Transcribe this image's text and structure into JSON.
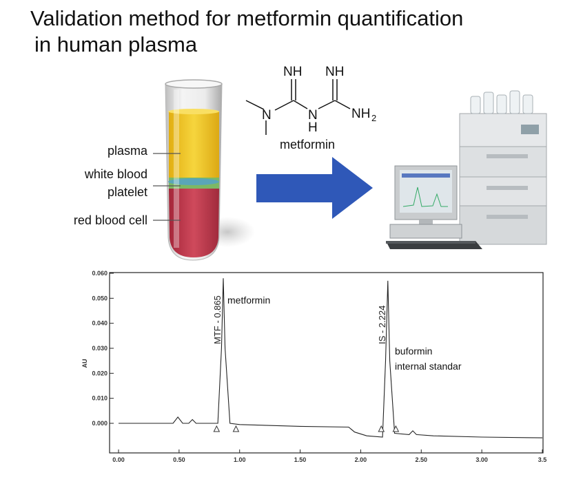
{
  "title": {
    "line1": "Validation method for metformin quantification",
    "line2": "in human plasma"
  },
  "tube": {
    "labels": [
      "plasma",
      "white blood",
      "platelet",
      "red blood cell"
    ],
    "colors": {
      "plasma": "#f1c62a",
      "buffy": "#6fb06a",
      "red": "#c23a4d",
      "glass": "#d8d8d8"
    }
  },
  "molecule": {
    "name": "metformin",
    "atoms": {
      "nh_left": "NH",
      "nh_right": "NH",
      "n_left": "N",
      "n_mid": "N",
      "h": "H",
      "nh2": "NH",
      "nh2_sub": "2"
    }
  },
  "arrow": {
    "color": "#2f58b8"
  },
  "instrument": {
    "description_icon": "hplc-system-icon"
  },
  "chart_data": {
    "type": "line",
    "title": "",
    "xlabel": "",
    "ylabel": "AU",
    "xlim": [
      0.0,
      3.5
    ],
    "ylim": [
      -0.006,
      0.06
    ],
    "x_ticks": [
      "0.00",
      "0.50",
      "1.00",
      "1.50",
      "2.00",
      "2.50",
      "3.00",
      "3.5"
    ],
    "y_ticks": [
      "0.000",
      "0.010",
      "0.020",
      "0.030",
      "0.040",
      "0.050",
      "0.060"
    ],
    "x_tick_values": [
      0.0,
      0.5,
      1.0,
      1.5,
      2.0,
      2.5,
      3.0,
      3.5
    ],
    "y_tick_values": [
      0.0,
      0.01,
      0.02,
      0.03,
      0.04,
      0.05,
      0.06
    ],
    "grid": false,
    "series": [
      {
        "points": [
          [
            0.0,
            0.0
          ],
          [
            0.45,
            0.0
          ],
          [
            0.49,
            0.0025
          ],
          [
            0.53,
            0.0
          ],
          [
            0.58,
            0.0
          ],
          [
            0.61,
            0.0015
          ],
          [
            0.64,
            0.0
          ],
          [
            0.82,
            0.0
          ],
          [
            0.85,
            0.03
          ],
          [
            0.865,
            0.058
          ],
          [
            0.88,
            0.03
          ],
          [
            0.92,
            0.0
          ],
          [
            1.0,
            -0.0005
          ],
          [
            1.5,
            -0.0012
          ],
          [
            1.9,
            -0.0015
          ],
          [
            1.95,
            -0.0035
          ],
          [
            2.05,
            -0.005
          ],
          [
            2.18,
            -0.0055
          ],
          [
            2.205,
            0.025
          ],
          [
            2.224,
            0.057
          ],
          [
            2.24,
            0.025
          ],
          [
            2.28,
            -0.004
          ],
          [
            2.4,
            -0.0045
          ],
          [
            2.43,
            -0.003
          ],
          [
            2.46,
            -0.0045
          ],
          [
            2.6,
            -0.005
          ],
          [
            3.0,
            -0.0055
          ],
          [
            3.5,
            -0.0058
          ]
        ]
      }
    ],
    "peaks": [
      {
        "label": "MTF - 0.865",
        "x": 0.865,
        "annotation": "metformin"
      },
      {
        "label": "IS - 2.224",
        "x": 2.224,
        "annotation_line1": "buformin",
        "annotation_line2": "internal standar"
      }
    ],
    "baseline_markers": [
      0.81,
      0.97,
      2.17,
      2.29
    ]
  }
}
